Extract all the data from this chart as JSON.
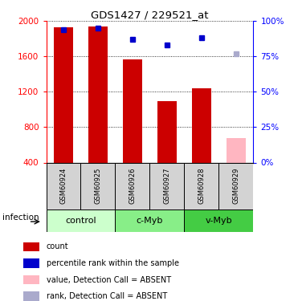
{
  "title": "GDS1427 / 229521_at",
  "samples": [
    "GSM60924",
    "GSM60925",
    "GSM60926",
    "GSM60927",
    "GSM60928",
    "GSM60929"
  ],
  "bar_values": [
    1930,
    1940,
    1570,
    1090,
    1240,
    680
  ],
  "bar_colors": [
    "#cc0000",
    "#cc0000",
    "#cc0000",
    "#cc0000",
    "#cc0000",
    "#ffb6c1"
  ],
  "rank_values": [
    94,
    95,
    87,
    83,
    88,
    77
  ],
  "rank_colors": [
    "#0000cc",
    "#0000cc",
    "#0000cc",
    "#0000cc",
    "#0000cc",
    "#aaaacc"
  ],
  "ylim_left": [
    400,
    2000
  ],
  "ylim_right": [
    0,
    100
  ],
  "yticks_left": [
    400,
    800,
    1200,
    1600,
    2000
  ],
  "yticks_right": [
    0,
    25,
    50,
    75,
    100
  ],
  "groups": [
    {
      "label": "control",
      "start": 0,
      "end": 2,
      "color": "#ccffcc"
    },
    {
      "label": "c-Myb",
      "start": 2,
      "end": 4,
      "color": "#88ee88"
    },
    {
      "label": "v-Myb",
      "start": 4,
      "end": 6,
      "color": "#44cc44"
    }
  ],
  "infection_label": "infection",
  "legend_items": [
    {
      "color": "#cc0000",
      "label": "count"
    },
    {
      "color": "#0000cc",
      "label": "percentile rank within the sample"
    },
    {
      "color": "#ffb6c1",
      "label": "value, Detection Call = ABSENT"
    },
    {
      "color": "#aaaacc",
      "label": "rank, Detection Call = ABSENT"
    }
  ],
  "bar_bottom": 400,
  "fig_width": 3.71,
  "fig_height": 3.75
}
